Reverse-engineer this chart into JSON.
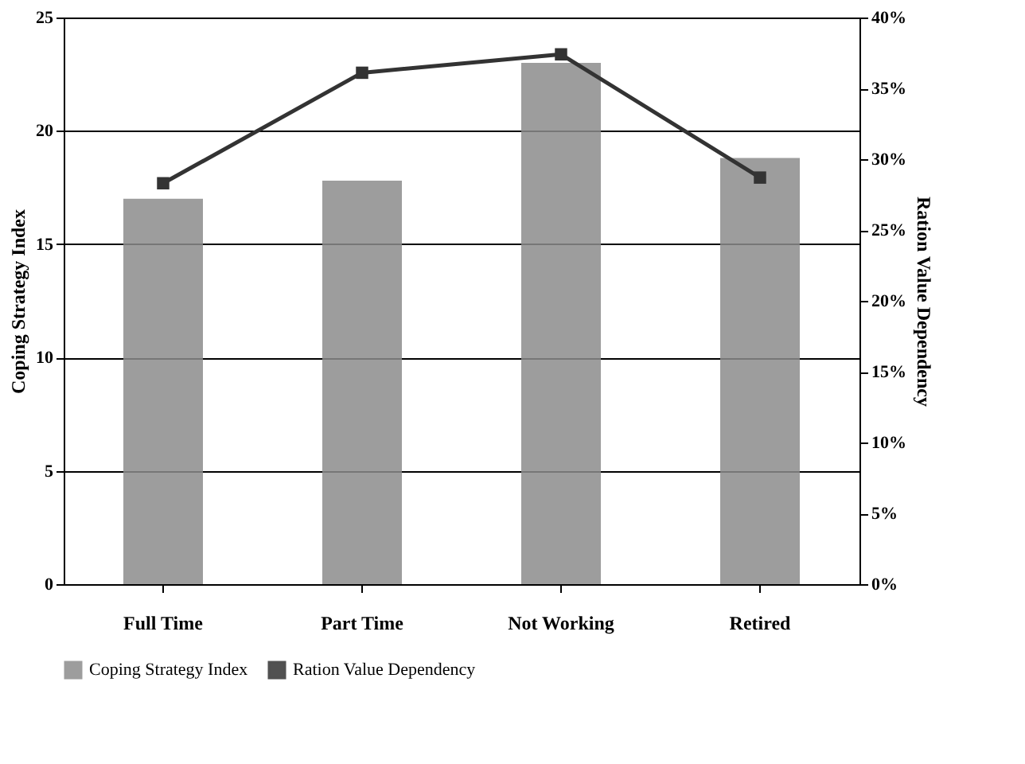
{
  "chart_data": {
    "type": "bar",
    "categories": [
      "Full Time",
      "Part Time",
      "Not Working",
      "Retired"
    ],
    "series": [
      {
        "name": "Coping Strategy Index",
        "color": "#8c8c8c",
        "values": [
          17.0,
          17.8,
          23.0,
          18.8
        ]
      },
      {
        "name": "Ration Value Dependency",
        "type": "line",
        "axis": "y2",
        "color": "#333333",
        "marker": "square",
        "values": [
          28.3,
          36.1,
          37.4,
          28.7
        ]
      }
    ],
    "ylabel": "Coping Strategy Index",
    "y2label": "Ration Value Dependency",
    "ylim": [
      0,
      25
    ],
    "yticks": [
      0,
      5,
      10,
      15,
      20,
      25
    ],
    "y2lim": [
      0,
      40
    ],
    "y2ticks": [
      {
        "value": 0,
        "label": "0%"
      },
      {
        "value": 5,
        "label": "5%"
      },
      {
        "value": 10,
        "label": "10%"
      },
      {
        "value": 15,
        "label": "15%"
      },
      {
        "value": 20,
        "label": "20%"
      },
      {
        "value": 25,
        "label": "25%"
      },
      {
        "value": 30,
        "label": "30%"
      },
      {
        "value": 35,
        "label": "35%"
      },
      {
        "value": 40,
        "label": "40%"
      }
    ],
    "grid": "y",
    "legend": "bottom"
  }
}
